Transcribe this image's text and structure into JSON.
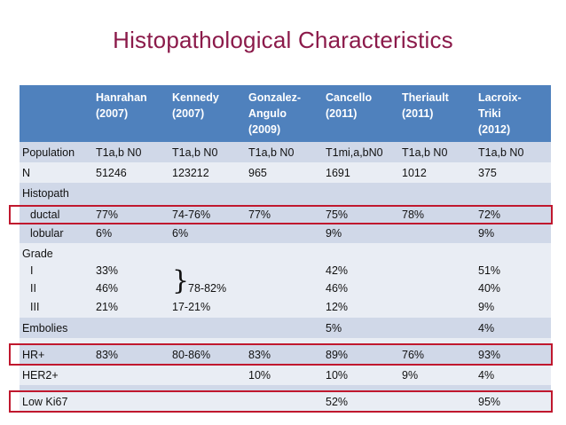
{
  "title": "Histopathological Characteristics",
  "colors": {
    "title": "#8b1a4a",
    "header": "#4f81bd",
    "row_dark": "#d0d8e8",
    "row_light": "#e9edf4",
    "highlight": "#c0182e"
  },
  "header": [
    [
      "Hanrahan",
      "(2007)"
    ],
    [
      "Kennedy",
      "(2007)"
    ],
    [
      "Gonzalez-",
      "Angulo",
      "(2009)"
    ],
    [
      "Cancello",
      "(2011)"
    ],
    [
      "Theriault",
      "(2011)"
    ],
    [
      "Lacroix-",
      "Triki",
      "(2012)"
    ]
  ],
  "rows": {
    "population": {
      "label": "Population",
      "values": [
        "T1a,b N0",
        "T1a,b N0",
        "T1a,b N0",
        "T1mi,a,bN0",
        "T1a,b N0",
        "T1a,b N0"
      ]
    },
    "n": {
      "label": "N",
      "values": [
        "51246",
        "123212",
        "965",
        "1691",
        "1012",
        "375"
      ]
    },
    "histopath": {
      "label": "Histopath",
      "ductal": {
        "label": "ductal",
        "values": [
          "77%",
          "74-76%",
          "77%",
          "75%",
          "78%",
          "72%"
        ]
      },
      "lobular": {
        "label": "lobular",
        "values": [
          "6%",
          "6%",
          "",
          "9%",
          "",
          "9%"
        ]
      }
    },
    "grade": {
      "label": "Grade",
      "g1": {
        "label": "I",
        "values": [
          "33%",
          "",
          "",
          "42%",
          "",
          "51%"
        ]
      },
      "g2": {
        "label": "II",
        "values": [
          "46%",
          "",
          "",
          "46%",
          "",
          "40%"
        ]
      },
      "g3": {
        "label": "III",
        "values": [
          "21%",
          "17-21%",
          "",
          "12%",
          "",
          "9%"
        ]
      },
      "kennedy_brace": "}",
      "kennedy_combined": "78-82%"
    },
    "embolies": {
      "label": "Embolies",
      "values": [
        "",
        "",
        "",
        "5%",
        "",
        "4%"
      ]
    },
    "hr": {
      "label": "HR+",
      "values": [
        "83%",
        "80-86%",
        "83%",
        "89%",
        "76%",
        "93%"
      ]
    },
    "her2": {
      "label": "HER2+",
      "values": [
        "",
        "",
        "10%",
        "10%",
        "9%",
        "4%"
      ]
    },
    "ki67": {
      "label": "Low Ki67",
      "values": [
        "",
        "",
        "",
        "52%",
        "",
        "95%"
      ]
    }
  }
}
